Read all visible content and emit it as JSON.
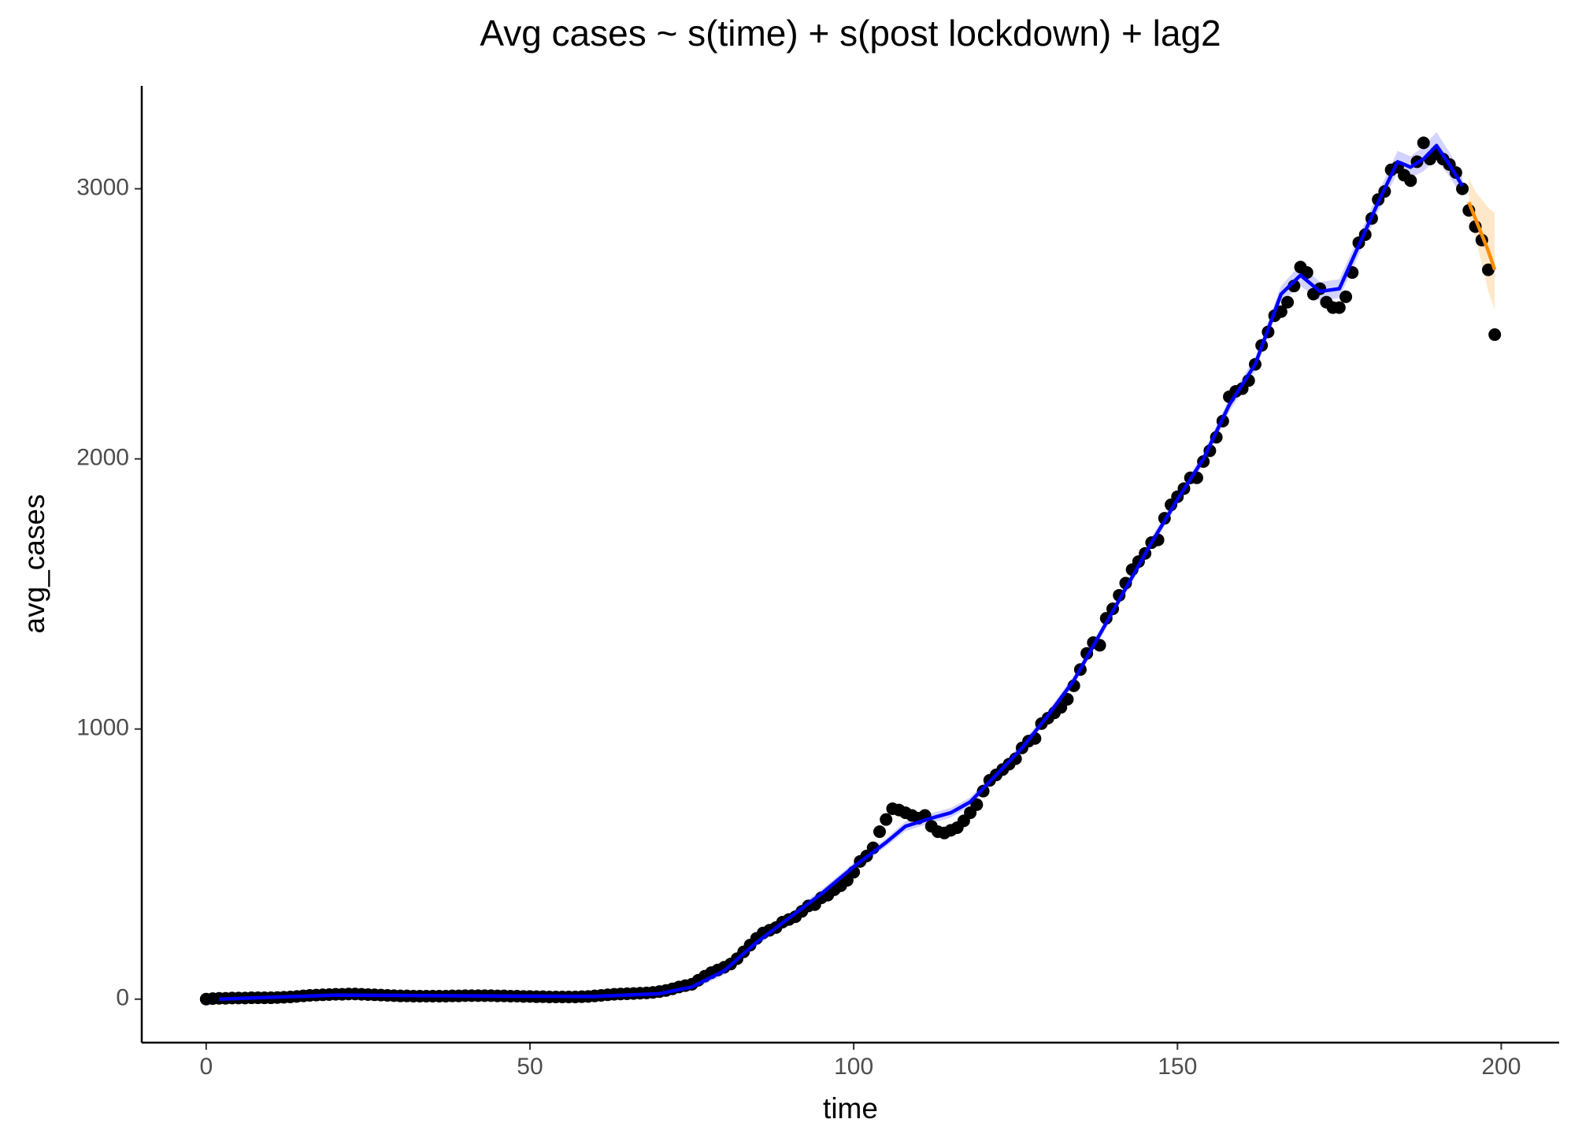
{
  "chart_data": {
    "type": "scatter",
    "title": "Avg cases  ~  s(time) + s(post lockdown) + lag2",
    "x_label": "time",
    "y_label": "avg_cases",
    "xlim": [
      -9.95,
      208.95
    ],
    "ylim": [
      -161,
      3381
    ],
    "xticks": [
      0,
      50,
      100,
      150,
      200
    ],
    "yticks": [
      0,
      1000,
      2000,
      3000
    ],
    "color": "#000000",
    "x": [
      0,
      1,
      2,
      3,
      4,
      5,
      6,
      7,
      8,
      9,
      10,
      11,
      12,
      13,
      14,
      15,
      16,
      17,
      18,
      19,
      20,
      21,
      22,
      23,
      24,
      25,
      26,
      27,
      28,
      29,
      30,
      31,
      32,
      33,
      34,
      35,
      36,
      37,
      38,
      39,
      40,
      41,
      42,
      43,
      44,
      45,
      46,
      47,
      48,
      49,
      50,
      51,
      52,
      53,
      54,
      55,
      56,
      57,
      58,
      59,
      60,
      61,
      62,
      63,
      64,
      65,
      66,
      67,
      68,
      69,
      70,
      71,
      72,
      73,
      74,
      75,
      76,
      77,
      78,
      79,
      80,
      81,
      82,
      83,
      84,
      85,
      86,
      87,
      88,
      89,
      90,
      91,
      92,
      93,
      94,
      95,
      96,
      97,
      98,
      99,
      100,
      101,
      102,
      103,
      104,
      105,
      106,
      107,
      108,
      109,
      110,
      111,
      112,
      113,
      114,
      115,
      116,
      117,
      118,
      119,
      120,
      121,
      122,
      123,
      124,
      125,
      126,
      127,
      128,
      129,
      130,
      131,
      132,
      133,
      134,
      135,
      136,
      137,
      138,
      139,
      140,
      141,
      142,
      143,
      144,
      145,
      146,
      147,
      148,
      149,
      150,
      151,
      152,
      153,
      154,
      155,
      156,
      157,
      158,
      159,
      160,
      161,
      162,
      163,
      164,
      165,
      166,
      167,
      168,
      169,
      170,
      171,
      172,
      173,
      174,
      175,
      176,
      177,
      178,
      179,
      180,
      181,
      182,
      183,
      184,
      185,
      186,
      187,
      188,
      189,
      190,
      191,
      192,
      193,
      194,
      195,
      196,
      197,
      198,
      199
    ],
    "values": [
      0,
      2,
      3,
      3,
      4,
      4,
      4,
      5,
      5,
      5,
      5,
      6,
      7,
      8,
      10,
      12,
      14,
      15,
      16,
      17,
      18,
      18,
      19,
      19,
      18,
      17,
      16,
      15,
      14,
      13,
      12,
      12,
      11,
      11,
      11,
      11,
      11,
      11,
      12,
      12,
      13,
      13,
      13,
      13,
      13,
      12,
      12,
      11,
      11,
      10,
      10,
      9,
      9,
      8,
      8,
      8,
      8,
      8,
      9,
      10,
      12,
      14,
      16,
      18,
      19,
      20,
      21,
      22,
      23,
      25,
      28,
      32,
      38,
      45,
      50,
      55,
      70,
      85,
      98,
      108,
      118,
      130,
      150,
      175,
      200,
      225,
      245,
      255,
      265,
      285,
      295,
      305,
      325,
      345,
      350,
      375,
      385,
      405,
      420,
      440,
      470,
      510,
      530,
      560,
      620,
      665,
      705,
      700,
      690,
      680,
      670,
      680,
      640,
      620,
      615,
      625,
      635,
      660,
      690,
      720,
      770,
      810,
      830,
      850,
      870,
      890,
      930,
      955,
      965,
      1020,
      1040,
      1060,
      1080,
      1110,
      1160,
      1220,
      1280,
      1320,
      1310,
      1410,
      1445,
      1495,
      1540,
      1590,
      1620,
      1650,
      1690,
      1700,
      1780,
      1830,
      1860,
      1890,
      1930,
      1930,
      1990,
      2030,
      2080,
      2140,
      2230,
      2250,
      2260,
      2290,
      2350,
      2420,
      2470,
      2530,
      2545,
      2580,
      2640,
      2710,
      2690,
      2610,
      2630,
      2580,
      2560,
      2560,
      2600,
      2690,
      2800,
      2830,
      2890,
      2960,
      2990,
      3070,
      3080,
      3050,
      3030,
      3100,
      3170,
      3110,
      3130,
      3110,
      3090,
      3060,
      3000,
      2920,
      2860,
      2810,
      2700,
      2460
    ],
    "fit": {
      "color": "#0000ff",
      "band_color": "#c8c8ff",
      "x": [
        2,
        20,
        40,
        60,
        70,
        75,
        80,
        85,
        90,
        95,
        100,
        105,
        108,
        112,
        115,
        118,
        122,
        126,
        130,
        134,
        138,
        142,
        146,
        150,
        154,
        158,
        162,
        166,
        169,
        172,
        175,
        178,
        181,
        184,
        186,
        188,
        190,
        192,
        194
      ],
      "values": [
        0,
        15,
        12,
        10,
        20,
        45,
        105,
        210,
        300,
        390,
        490,
        580,
        640,
        670,
        690,
        730,
        830,
        930,
        1050,
        1180,
        1350,
        1520,
        1690,
        1850,
        2000,
        2200,
        2350,
        2610,
        2680,
        2620,
        2630,
        2790,
        2950,
        3100,
        3080,
        3110,
        3160,
        3090,
        3010
      ],
      "lower": [
        -10,
        5,
        4,
        2,
        10,
        32,
        90,
        195,
        285,
        375,
        475,
        565,
        622,
        652,
        672,
        713,
        813,
        913,
        1033,
        1162,
        1332,
        1502,
        1670,
        1830,
        1980,
        2175,
        2325,
        2580,
        2640,
        2585,
        2595,
        2755,
        2915,
        3060,
        3040,
        3065,
        3110,
        3045,
        2970
      ],
      "upper": [
        10,
        25,
        20,
        18,
        30,
        58,
        120,
        225,
        315,
        405,
        505,
        595,
        658,
        688,
        708,
        747,
        847,
        947,
        1067,
        1198,
        1368,
        1538,
        1710,
        1870,
        2020,
        2225,
        2375,
        2640,
        2720,
        2655,
        2665,
        2825,
        2985,
        3140,
        3120,
        3155,
        3210,
        3135,
        3050
      ]
    },
    "forecast": {
      "color": "#ff8c00",
      "band_color": "#ffe2bd",
      "x": [
        195,
        196,
        197,
        198,
        199
      ],
      "values": [
        2950,
        2890,
        2830,
        2770,
        2700
      ],
      "lower": [
        2900,
        2820,
        2720,
        2620,
        2550
      ],
      "upper": [
        3040,
        2990,
        2960,
        2930,
        2910
      ]
    }
  }
}
